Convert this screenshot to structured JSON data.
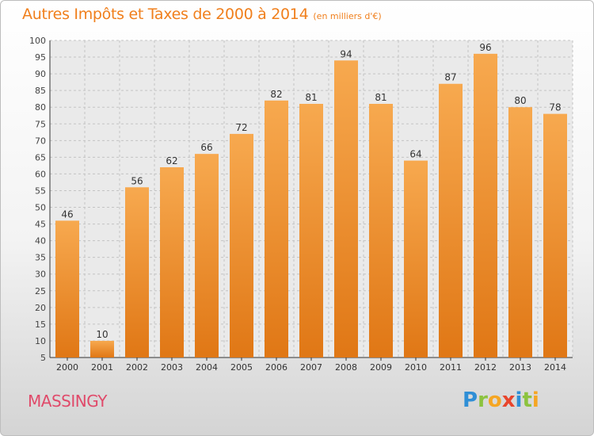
{
  "header": {
    "title": "Autres Impôts et Taxes de 2000 à 2014",
    "subtitle": "(en milliers d'€)"
  },
  "footer": {
    "commune": "MASSINGY",
    "logo_letters": [
      {
        "ch": "P",
        "color": "#2f8fd6"
      },
      {
        "ch": "r",
        "color": "#8cc33f"
      },
      {
        "ch": "o",
        "color": "#f5a623"
      },
      {
        "ch": "x",
        "color": "#e8452c"
      },
      {
        "ch": "i",
        "color": "#2f8fd6"
      },
      {
        "ch": "t",
        "color": "#8cc33f"
      },
      {
        "ch": "i",
        "color": "#f5a623"
      }
    ]
  },
  "colors": {
    "accent": "#f07f1c",
    "bar_light": "#f7a94f",
    "bar_dark": "#e07715",
    "commune": "#e04a6a"
  },
  "chart_data": {
    "type": "bar",
    "title": "Autres Impôts et Taxes de 2000 à 2014",
    "subtitle": "(en milliers d'€)",
    "categories": [
      "2000",
      "2001",
      "2002",
      "2003",
      "2004",
      "2005",
      "2006",
      "2007",
      "2008",
      "2009",
      "2010",
      "2011",
      "2012",
      "2013",
      "2014"
    ],
    "values": [
      46,
      10,
      56,
      62,
      66,
      72,
      82,
      81,
      94,
      81,
      64,
      87,
      96,
      80,
      78
    ],
    "ylim": [
      5,
      100
    ],
    "yticks": [
      5,
      10,
      15,
      20,
      25,
      30,
      35,
      40,
      45,
      50,
      55,
      60,
      65,
      70,
      75,
      80,
      85,
      90,
      95,
      100
    ],
    "grid": true,
    "data_labels": true
  }
}
